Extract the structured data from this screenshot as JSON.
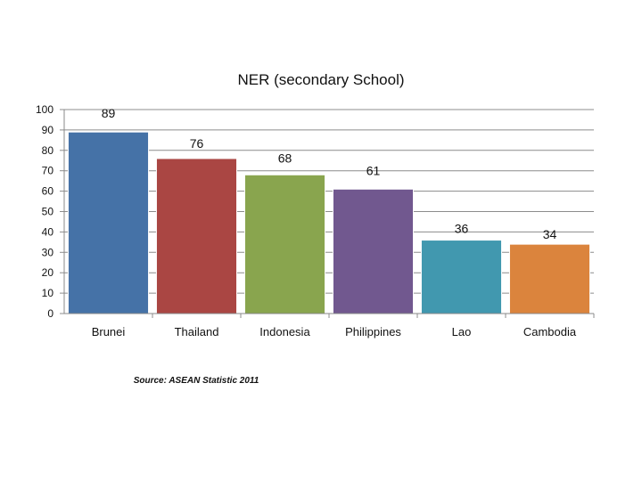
{
  "chart_data": {
    "type": "bar",
    "title": "NER (secondary School)",
    "xlabel": "",
    "ylabel": "",
    "categories": [
      "Brunei",
      "Thailand",
      "Indonesia",
      "Philippines",
      "Lao",
      "Cambodia"
    ],
    "values": [
      89,
      76,
      68,
      61,
      36,
      34
    ],
    "ylim": [
      0,
      100
    ],
    "yticks": [
      0,
      10,
      20,
      30,
      40,
      50,
      60,
      70,
      80,
      90,
      100
    ],
    "grid": true,
    "legend": "none",
    "colors": [
      "#4572A7",
      "#AA4643",
      "#89A54E",
      "#71588F",
      "#4198AF",
      "#DB843D"
    ]
  },
  "source_note": "Source: ASEAN Statistic  2011"
}
